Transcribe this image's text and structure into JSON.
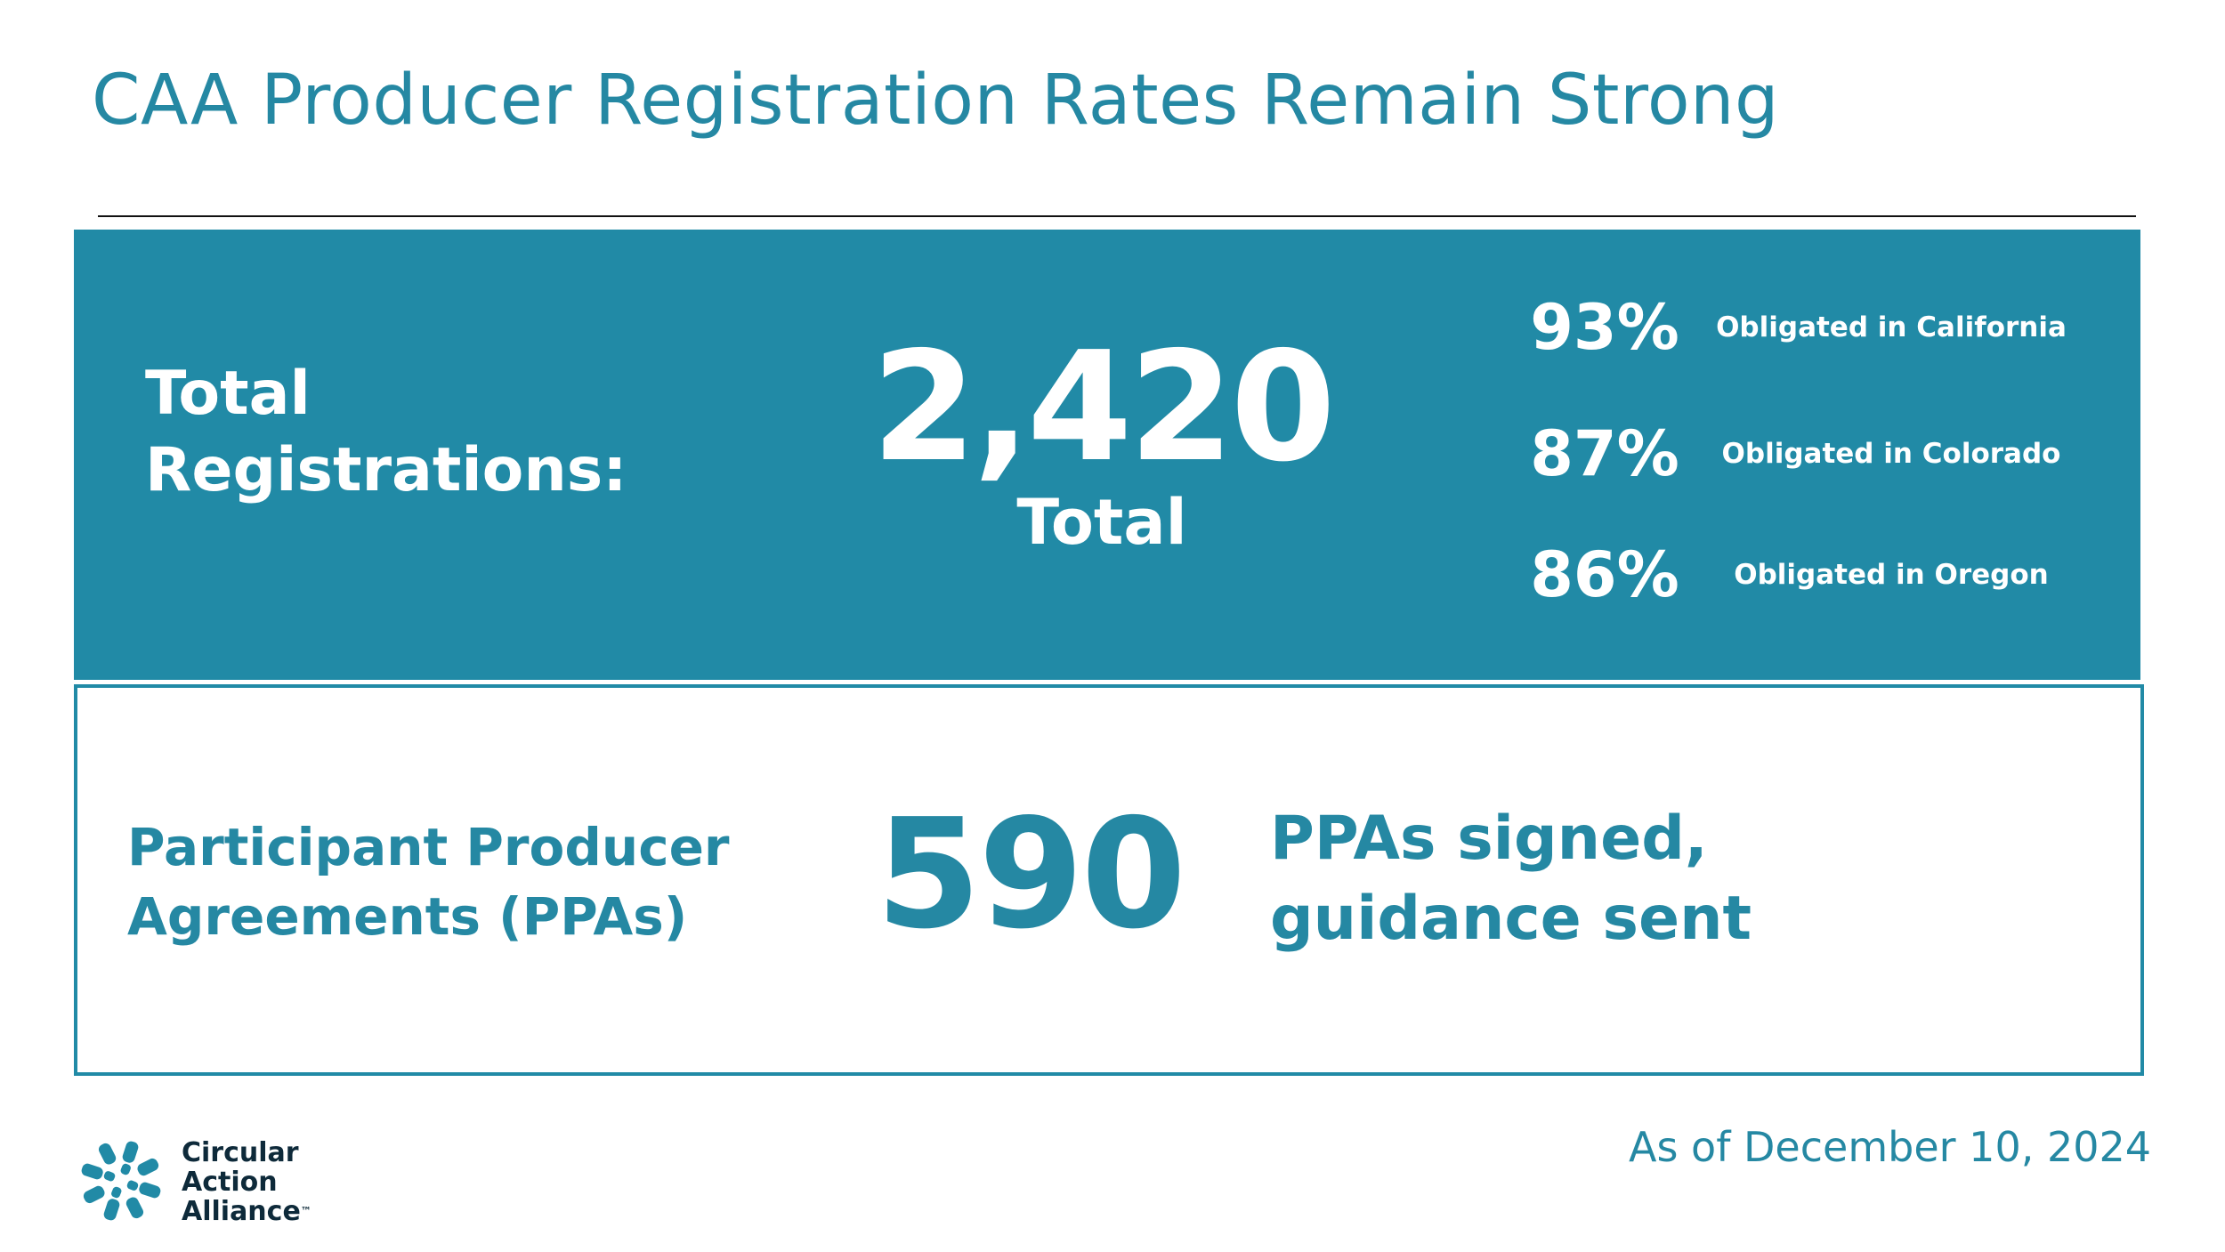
{
  "slide": {
    "title": "CAA Producer Registration Rates Remain Strong"
  },
  "registrations": {
    "label_line1": "Total",
    "label_line2": "Registrations:",
    "total_value": "2,420",
    "total_caption": "Total",
    "stats": [
      {
        "percent": "93%",
        "label": "Obligated in California"
      },
      {
        "percent": "87%",
        "label": "Obligated in Colorado"
      },
      {
        "percent": "86%",
        "label": "Obligated in Oregon"
      }
    ]
  },
  "ppa": {
    "label_line1": "Participant Producer",
    "label_line2": "Agreements (PPAs)",
    "value": "590",
    "desc_line1": "PPAs signed,",
    "desc_line2": "guidance sent"
  },
  "footer": {
    "date_note": "As of December 10, 2024",
    "logo_line1": "Circular",
    "logo_line2": "Action",
    "logo_line3": "Alliance",
    "logo_tm": "™"
  },
  "colors": {
    "brand_teal": "#218aa6",
    "title_teal": "#2588a3",
    "white": "#ffffff",
    "logo_text": "#0e2a3a"
  }
}
